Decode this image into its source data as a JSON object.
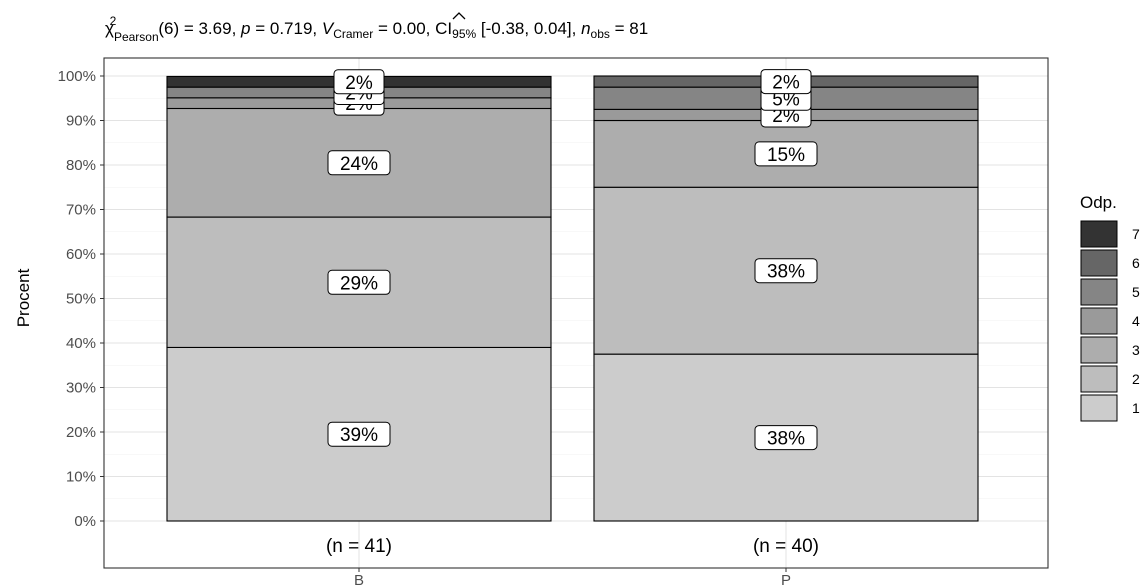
{
  "chart_data": {
    "type": "bar",
    "stacked": true,
    "percent": true,
    "title_parts": {
      "chi": "χ",
      "chi_sup": "2",
      "chi_sub": "Pearson",
      "chi_rest": "(6) = 3.69, ",
      "p_sym": "p",
      "p_rest": " = 0.719, ",
      "v_sym": "V",
      "v_sub": "Cramer",
      "v_rest": " = 0.00, CI",
      "ci_sub": "95%",
      "ci_rest": " [-0.38, 0.04], ",
      "n_sym": "n",
      "n_sub": "obs",
      "n_rest": " = 81"
    },
    "ylabel": "Procent",
    "xlabel": "",
    "ylim": [
      0,
      100
    ],
    "yticks": [
      "0%",
      "10%",
      "20%",
      "30%",
      "40%",
      "50%",
      "60%",
      "70%",
      "80%",
      "90%",
      "100%"
    ],
    "grid": true,
    "legend": {
      "title": "Odp.",
      "position": "right",
      "items": [
        "7",
        "6",
        "5",
        "4",
        "3",
        "2",
        "1"
      ]
    },
    "colors": {
      "1": "#cccccc",
      "2": "#bdbdbd",
      "3": "#adadad",
      "4": "#9a9a9a",
      "5": "#858585",
      "6": "#666666",
      "7": "#333333"
    },
    "categories": [
      "B",
      "P"
    ],
    "counts": [
      "(n = 41)",
      "(n = 40)"
    ],
    "series": [
      {
        "name": "1",
        "values": [
          39.0,
          37.5
        ],
        "labels": [
          "39%",
          "38%"
        ]
      },
      {
        "name": "2",
        "values": [
          29.3,
          37.5
        ],
        "labels": [
          "29%",
          "38%"
        ]
      },
      {
        "name": "3",
        "values": [
          24.4,
          15.0
        ],
        "labels": [
          "24%",
          "15%"
        ]
      },
      {
        "name": "4",
        "values": [
          2.4,
          2.5
        ],
        "labels": [
          "2%",
          "2%"
        ]
      },
      {
        "name": "5",
        "values": [
          2.4,
          5.0
        ],
        "labels": [
          "2%",
          "5%"
        ]
      },
      {
        "name": "6",
        "values": [
          0.0,
          2.5
        ],
        "labels": [
          "",
          "2%"
        ]
      },
      {
        "name": "7",
        "values": [
          2.4,
          0.0
        ],
        "labels": [
          "2%",
          ""
        ]
      }
    ]
  }
}
